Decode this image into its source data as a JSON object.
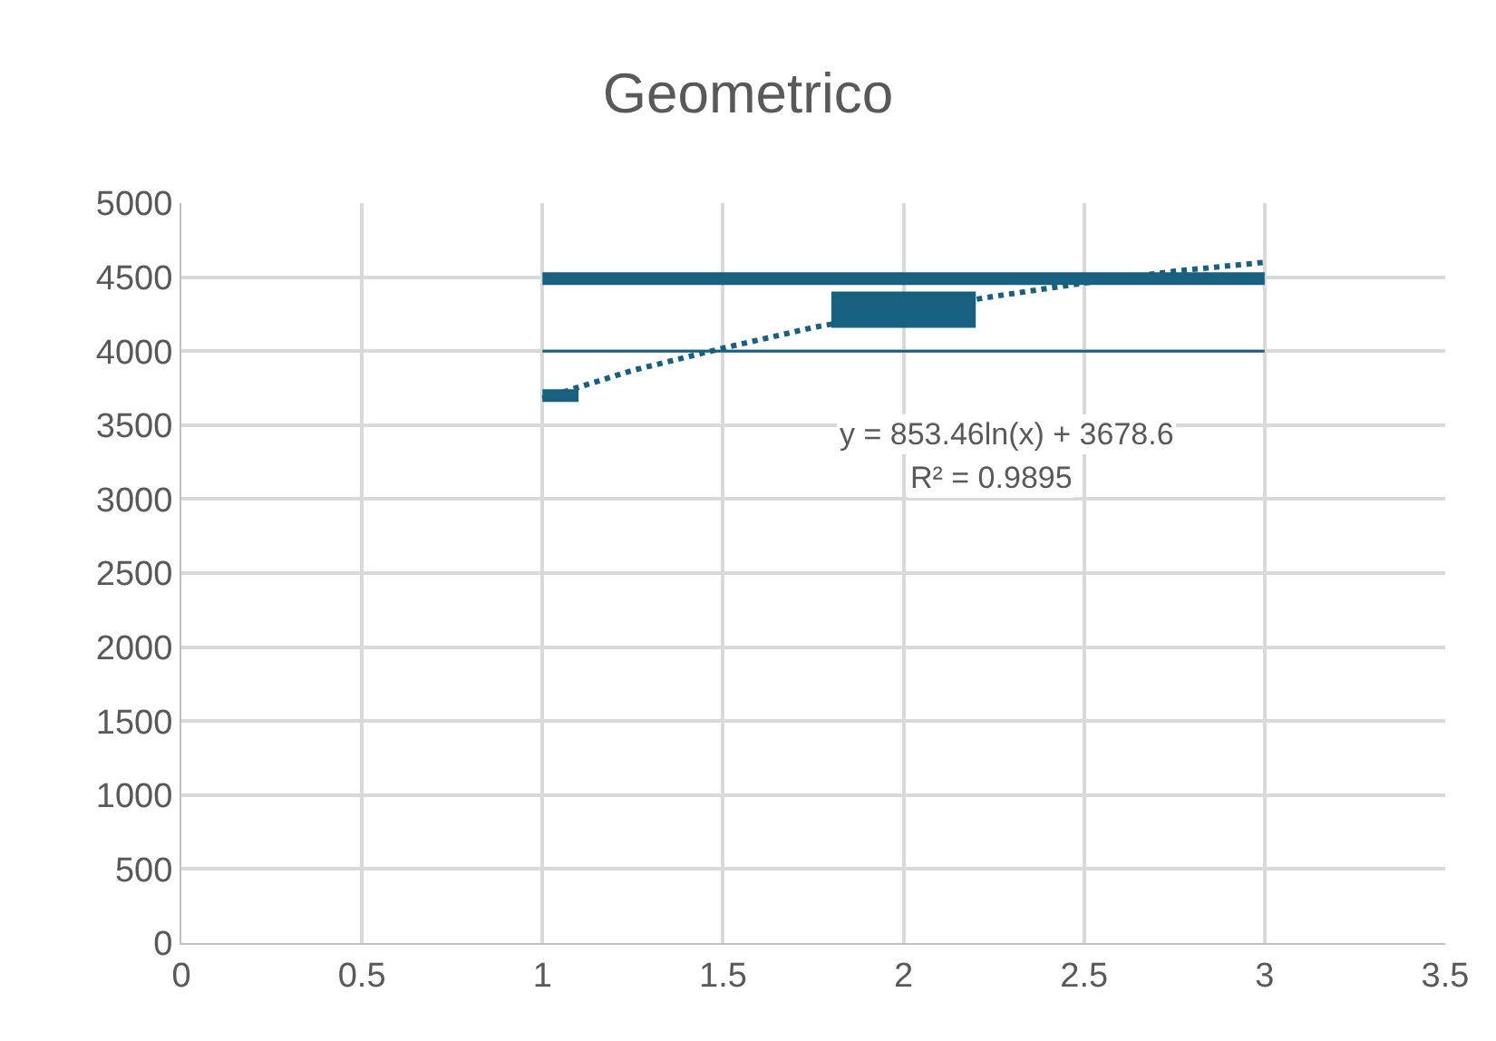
{
  "chart_data": {
    "type": "line",
    "title": "Geometrico",
    "series": [
      {
        "color": "#17607f",
        "x": [
          1,
          1.1,
          null,
          1,
          3
        ],
        "values": [
          3700,
          3700,
          null,
          4490,
          4490
        ],
        "line_style": "solid"
      },
      {
        "color": "#17607f",
        "x": [
          1.8,
          2.2
        ],
        "values": [
          4280,
          4280
        ],
        "line_style": "solid"
      },
      {
        "color": "#17607f",
        "x": [
          1,
          3
        ],
        "values": [
          4000,
          4000
        ],
        "line_style": "solid"
      },
      {
        "color": "#17607f",
        "x": [
          1,
          1.25,
          1.5,
          1.75,
          2,
          2.25,
          2.5,
          2.75,
          3
        ],
        "values": [
          3680,
          3870,
          4020,
          4160,
          4270,
          4370,
          4460,
          4540,
          4600
        ],
        "line_style": "dotted"
      }
    ],
    "xlim": [
      0,
      3.5
    ],
    "xticks": [
      0,
      0.5,
      1,
      1.5,
      2,
      2.5,
      3,
      3.5
    ],
    "ylim": [
      0,
      5000
    ],
    "yticks": [
      0,
      500,
      1000,
      1500,
      2000,
      2500,
      3000,
      3500,
      4000,
      4500,
      5000
    ],
    "grid": true,
    "marker": "none",
    "annotations": [
      "y = 853.46ln(x) + 3678.6",
      "R² = 0.9895"
    ]
  }
}
